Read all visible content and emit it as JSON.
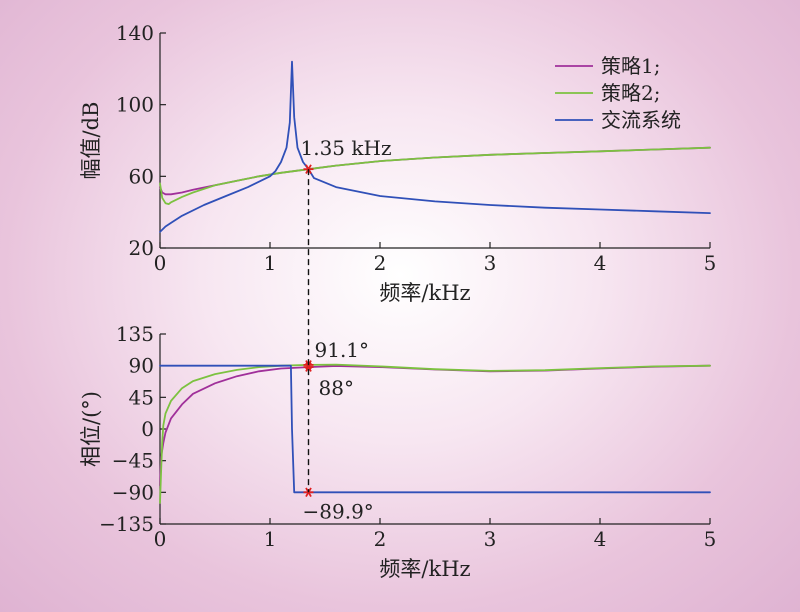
{
  "chart_data": [
    {
      "type": "line",
      "xlabel": "频率/kHz",
      "ylabel": "幅值/dB",
      "xlim": [
        0,
        5
      ],
      "ylim": [
        20,
        140
      ],
      "xticks": [
        "0",
        "1",
        "2",
        "3",
        "4",
        "5"
      ],
      "yticks": [
        "20",
        "60",
        "100",
        "140"
      ],
      "legend_position": "top-right",
      "grid": false,
      "annotations": [
        {
          "text": "1.35 kHz",
          "x": 1.35,
          "y": 64
        }
      ],
      "series": [
        {
          "name": "策略1;",
          "color": "#a0309a",
          "x": [
            0,
            0.02,
            0.05,
            0.1,
            0.2,
            0.3,
            0.5,
            0.7,
            0.9,
            1.1,
            1.35,
            1.6,
            2.0,
            2.5,
            3.0,
            3.5,
            4.0,
            4.5,
            5.0
          ],
          "y": [
            54,
            51,
            50,
            50,
            51,
            52.5,
            55,
            57.5,
            60,
            62,
            64,
            66,
            68.5,
            70.5,
            72,
            73,
            74,
            75,
            76
          ]
        },
        {
          "name": "策略2;",
          "color": "#7cc240",
          "x": [
            0,
            0.02,
            0.05,
            0.08,
            0.1,
            0.2,
            0.3,
            0.5,
            0.7,
            0.9,
            1.1,
            1.35,
            1.6,
            2.0,
            2.5,
            3.0,
            3.5,
            4.0,
            4.5,
            5.0
          ],
          "y": [
            56,
            48,
            45,
            44.5,
            45.5,
            48.5,
            51,
            55,
            57.5,
            60,
            62,
            64,
            66,
            68.5,
            70.5,
            72,
            73,
            74,
            75,
            76
          ]
        },
        {
          "name": "交流系统",
          "color": "#3050b8",
          "x": [
            0,
            0.05,
            0.1,
            0.2,
            0.4,
            0.6,
            0.8,
            1.0,
            1.05,
            1.1,
            1.15,
            1.18,
            1.2,
            1.22,
            1.25,
            1.3,
            1.35,
            1.4,
            1.6,
            2.0,
            2.5,
            3.0,
            3.5,
            4.0,
            4.5,
            5.0
          ],
          "y": [
            29,
            32,
            34,
            38,
            44,
            49,
            54,
            60,
            63,
            68,
            76,
            90,
            124,
            93,
            76,
            68,
            64,
            59,
            54,
            49,
            46,
            44,
            42.5,
            41.5,
            40.5,
            39.5
          ]
        }
      ]
    },
    {
      "type": "line",
      "xlabel": "频率/kHz",
      "ylabel": "相位/(°)",
      "xlim": [
        0,
        5
      ],
      "ylim": [
        -135,
        135
      ],
      "xticks": [
        "0",
        "1",
        "2",
        "3",
        "4",
        "5"
      ],
      "yticks": [
        "-135",
        "-90",
        "-45",
        "0",
        "45",
        "90",
        "135"
      ],
      "grid": false,
      "annotations": [
        {
          "text": "91.1°",
          "x": 1.35,
          "y": 91.1
        },
        {
          "text": "88°",
          "x": 1.35,
          "y": 88
        },
        {
          "text": "−89.9°",
          "x": 1.35,
          "y": -89.9
        }
      ],
      "series": [
        {
          "name": "策略1;",
          "color": "#a0309a",
          "x": [
            0,
            0.01,
            0.03,
            0.05,
            0.1,
            0.2,
            0.3,
            0.5,
            0.7,
            0.9,
            1.1,
            1.35,
            1.6,
            2.0,
            2.5,
            3.0,
            3.5,
            4.0,
            4.5,
            5.0
          ],
          "y": [
            -80,
            -40,
            -20,
            -5,
            15,
            35,
            50,
            65,
            75,
            82,
            86,
            88,
            89.5,
            88,
            84.5,
            82,
            83,
            86,
            88.5,
            90
          ]
        },
        {
          "name": "策略2;",
          "color": "#7cc240",
          "x": [
            0,
            0.01,
            0.02,
            0.03,
            0.05,
            0.1,
            0.2,
            0.3,
            0.5,
            0.7,
            0.9,
            1.1,
            1.35,
            1.6,
            2.0,
            2.5,
            3.0,
            3.5,
            4.0,
            4.5,
            5.0
          ],
          "y": [
            -105,
            -60,
            -20,
            5,
            22,
            40,
            58,
            68,
            78,
            84,
            88,
            90,
            91.1,
            91.5,
            89,
            85,
            82.5,
            83.5,
            86.5,
            89,
            90
          ]
        },
        {
          "name": "交流系统",
          "color": "#3050b8",
          "x": [
            0,
            0.5,
            1.0,
            1.18,
            1.19,
            1.2,
            1.22,
            1.35,
            2.0,
            3.0,
            4.0,
            5.0
          ],
          "y": [
            90,
            90,
            90,
            90,
            90,
            0,
            -90,
            -89.9,
            -89.9,
            -89.9,
            -89.9,
            -89.9
          ]
        }
      ]
    }
  ]
}
